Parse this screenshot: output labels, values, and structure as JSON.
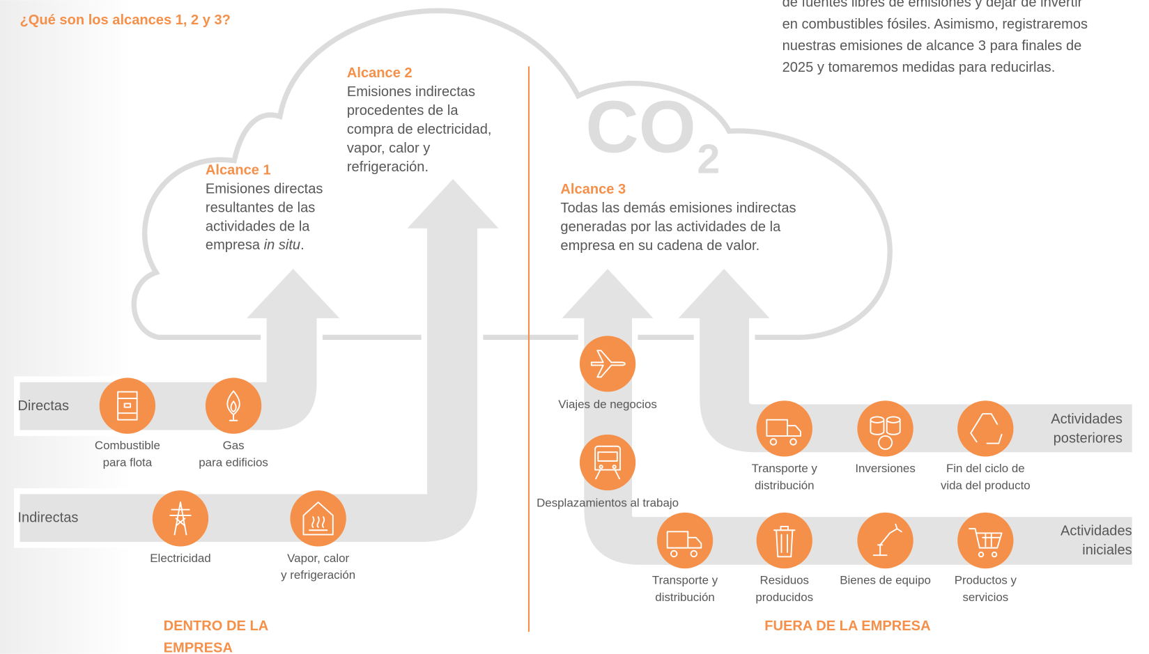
{
  "heading": "¿Qué son los alcances 1, 2 y 3?",
  "intro_lines": [
    "de fuentes libres de emisiones y dejar de invertir",
    "en combustibles fósiles. Asimismo, registraremos",
    "nuestras emisiones de alcance 3 para finales de",
    "2025 y tomaremos medidas para reducirlas."
  ],
  "co2": {
    "symbol": "CO",
    "subscript": "2"
  },
  "scopes": [
    {
      "title": "Alcance 1",
      "lines": [
        "Emisiones directas",
        "resultantes de las",
        "actividades de la",
        {
          "text": "empresa ",
          "italic": "in situ",
          "end": "."
        }
      ]
    },
    {
      "title": "Alcance 2",
      "lines": [
        "Emisiones indirectas",
        "procedentes de la",
        "compra de electricidad,",
        "vapor, calor y",
        "refrigeración."
      ]
    },
    {
      "title": "Alcance 3",
      "lines": [
        "Todas las demás emisiones indirectas",
        "generadas por las actividades de la",
        "empresa en su cadena de valor."
      ]
    }
  ],
  "rows": {
    "directas": "Directas",
    "indirectas": "Indirectas",
    "posteriores": [
      "Actividades",
      "posteriores"
    ],
    "iniciales": [
      "Actividades",
      "iniciales"
    ]
  },
  "sources": [
    {
      "label_lines": [
        "Combustible",
        "para flota"
      ]
    },
    {
      "label_lines": [
        "Gas",
        "para edificios"
      ]
    },
    {
      "label_lines": [
        "Electricidad"
      ]
    },
    {
      "label_lines": [
        "Vapor, calor",
        "y refrigeración"
      ]
    },
    {
      "label_lines": [
        "Viajes de negocios"
      ]
    },
    {
      "label_lines": [
        "Desplazamientos al trabajo"
      ]
    },
    {
      "label_lines": [
        "Transporte y",
        "distribución"
      ]
    },
    {
      "label_lines": [
        "Inversiones"
      ]
    },
    {
      "label_lines": [
        "Fin del ciclo de",
        "vida del producto"
      ]
    },
    {
      "label_lines": [
        "Transporte y",
        "distribución"
      ]
    },
    {
      "label_lines": [
        "Residuos",
        "producidos"
      ]
    },
    {
      "label_lines": [
        "Bienes de equipo"
      ]
    },
    {
      "label_lines": [
        "Productos y",
        "servicios"
      ]
    }
  ],
  "sections": {
    "inside": [
      "DENTRO DE LA",
      "EMPRESA"
    ],
    "outside": "FUERA DE LA EMPRESA"
  }
}
